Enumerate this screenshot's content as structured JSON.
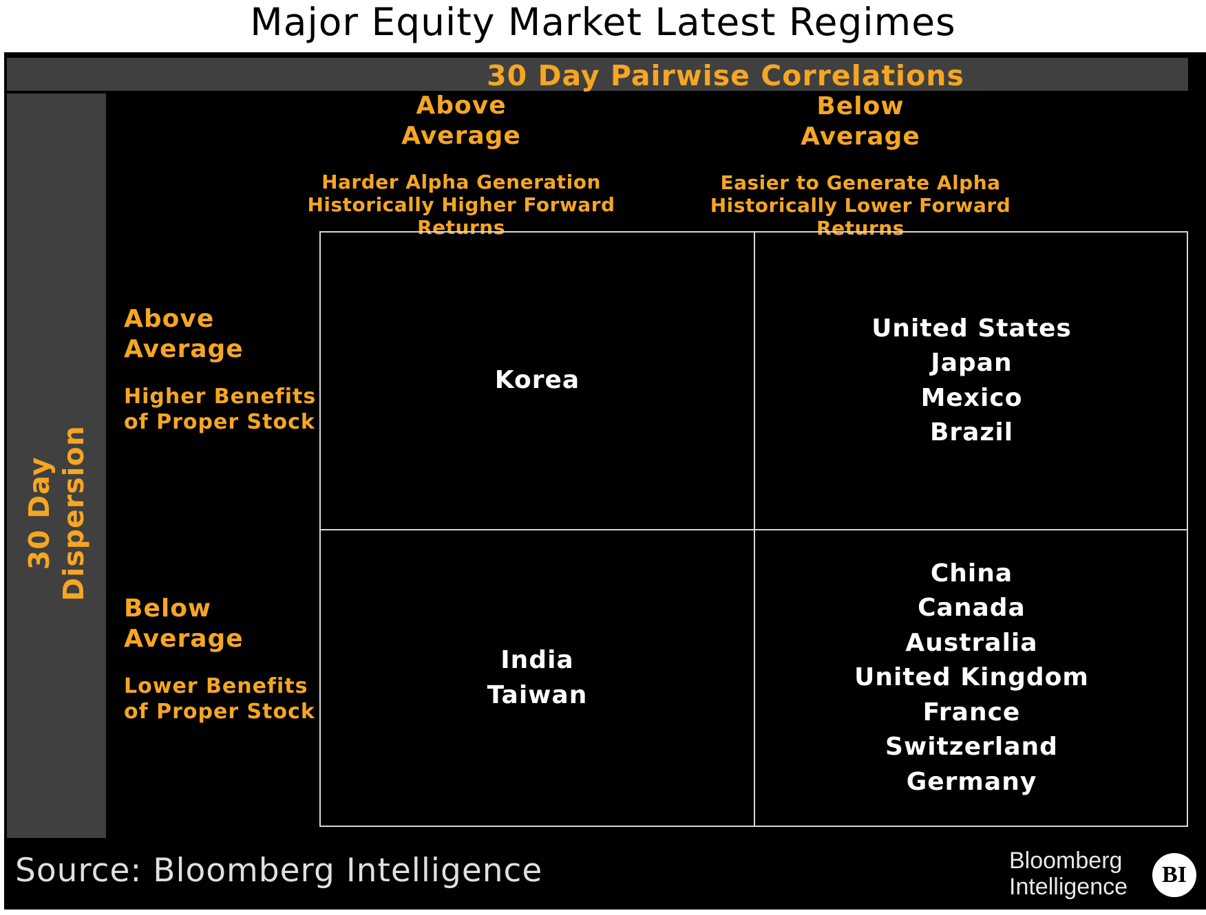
{
  "title": "Major Equity Market Latest Regimes",
  "x_axis": {
    "label": "30 Day Pairwise Correlations",
    "columns": [
      {
        "heading": "Above\nAverage",
        "note": "Harder Alpha Generation\nHistorically Higher Forward Returns"
      },
      {
        "heading": "Below\nAverage",
        "note": "Easier to Generate Alpha\nHistorically Lower Forward Returns"
      }
    ]
  },
  "y_axis": {
    "label": "30 Day\nDispersion",
    "rows": [
      {
        "heading": "Above\nAverage",
        "note": "Higher Benefits\nof Proper Stock"
      },
      {
        "heading": "Below\nAverage",
        "note": "Lower Benefits\nof Proper Stock"
      }
    ]
  },
  "quadrants": {
    "top_left": [
      "Korea"
    ],
    "top_right": [
      "United States",
      "Japan",
      "Mexico",
      "Brazil"
    ],
    "bottom_left": [
      "India",
      "Taiwan"
    ],
    "bottom_right": [
      "China",
      "Canada",
      "Australia",
      "United Kingdom",
      "France",
      "Switzerland",
      "Germany"
    ]
  },
  "footer": {
    "source": "Source: Bloomberg Intelligence",
    "logo_text": "Bloomberg\nIntelligence",
    "badge": "BI"
  },
  "colors": {
    "accent": "#f5a623",
    "background": "#000000",
    "band": "#404040",
    "text": "#ffffff"
  }
}
